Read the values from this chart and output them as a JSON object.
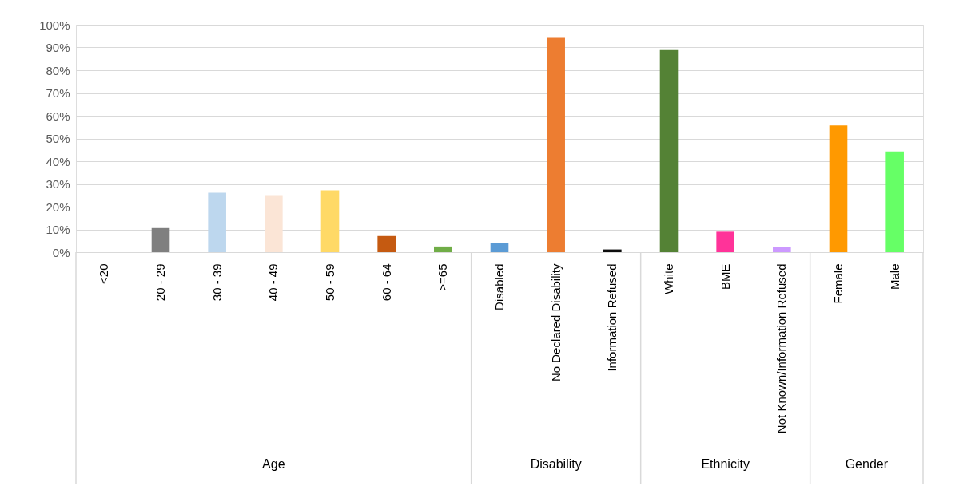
{
  "chart_data": {
    "type": "bar",
    "categories": [
      "<20",
      "20 - 29",
      "30 - 39",
      "40 - 49",
      "50 - 59",
      "60 - 64",
      ">=65",
      "Disabled",
      "No Declared Disability",
      "Information Refused",
      "White",
      "BME",
      "Not Known/Information Refused",
      "Female",
      "Male"
    ],
    "values": [
      0,
      10.6,
      26.1,
      25.1,
      27.2,
      7.1,
      2.5,
      3.9,
      94.6,
      1.2,
      88.9,
      9.0,
      2.2,
      55.7,
      44.3
    ],
    "colors": [
      "#4472c4",
      "#7f7f7f",
      "#bdd7ee",
      "#fbe5d6",
      "#ffd966",
      "#c55a11",
      "#70ad47",
      "#5b9bd5",
      "#ed7d31",
      "#0d0d0d",
      "#548235",
      "#ff3399",
      "#cc99ff",
      "#ff9900",
      "#66ff66"
    ],
    "annotations": [
      "Age",
      "Disability",
      "Ethnicity",
      "Gender"
    ],
    "ylim": [
      0,
      100
    ],
    "yticks": [
      {
        "value": 0,
        "label": "0%"
      },
      {
        "value": 10,
        "label": "10%"
      },
      {
        "value": 20,
        "label": "20%"
      },
      {
        "value": 30,
        "label": "30%"
      },
      {
        "value": 40,
        "label": "40%"
      },
      {
        "value": 50,
        "label": "50%"
      },
      {
        "value": 60,
        "label": "60%"
      },
      {
        "value": 70,
        "label": "70%"
      },
      {
        "value": 80,
        "label": "80%"
      },
      {
        "value": 90,
        "label": "90%"
      },
      {
        "value": 100,
        "label": "100%"
      }
    ],
    "grid": true
  }
}
